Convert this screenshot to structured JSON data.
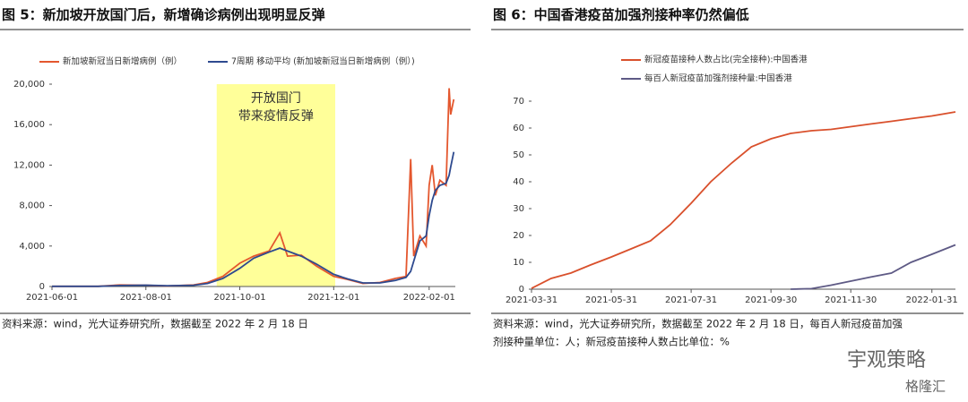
{
  "chart_data": [
    {
      "type": "line",
      "title": "图 5：新加坡开放国门后，新增确诊病例出现明显反弹",
      "x": [
        "2021-06-01",
        "2021-06-15",
        "2021-07-01",
        "2021-07-15",
        "2021-08-01",
        "2021-08-15",
        "2021-09-01",
        "2021-09-10",
        "2021-09-20",
        "2021-10-01",
        "2021-10-10",
        "2021-10-20",
        "2021-10-27",
        "2021-11-01",
        "2021-11-10",
        "2021-11-20",
        "2021-12-01",
        "2021-12-10",
        "2021-12-20",
        "2021-12-31",
        "2022-01-10",
        "2022-01-17",
        "2022-01-20",
        "2022-01-22",
        "2022-01-26",
        "2022-01-30",
        "2022-02-01",
        "2022-02-03",
        "2022-02-05",
        "2022-02-08",
        "2022-02-12",
        "2022-02-14",
        "2022-02-15",
        "2022-02-17"
      ],
      "series": [
        {
          "name": "新加坡新冠当日新增病例（例）",
          "color": "#e4572e",
          "values": [
            20,
            15,
            20,
            150,
            120,
            50,
            150,
            400,
            1000,
            2300,
            3000,
            3500,
            5300,
            3000,
            3100,
            2000,
            1000,
            700,
            300,
            400,
            800,
            1000,
            12600,
            3000,
            5000,
            4000,
            10000,
            12000,
            9000,
            10500,
            10000,
            19600,
            17000,
            18500
          ]
        },
        {
          "name": "7周期 移动平均 (新加坡新冠当日新增病例（例）)",
          "color": "#2e4a8f",
          "values": [
            20,
            18,
            18,
            100,
            130,
            80,
            120,
            300,
            800,
            1800,
            2800,
            3400,
            3800,
            3500,
            3000,
            2200,
            1200,
            750,
            350,
            350,
            600,
            900,
            1500,
            2500,
            4500,
            5000,
            7000,
            8500,
            9500,
            10000,
            10200,
            11000,
            11800,
            13300
          ]
        }
      ],
      "xlim": [
        "2021-06-01",
        "2022-02-18"
      ],
      "xticks": [
        "2021-06-01",
        "2021-08-01",
        "2021-10-01",
        "2021-12-01",
        "2022-02-01"
      ],
      "ylim": [
        0,
        20000
      ],
      "yticks": [
        0,
        {
          "value": 4000,
          "label": "4,000"
        },
        {
          "value": 8000,
          "label": "8,000"
        },
        {
          "value": 12000,
          "label": "12,000"
        },
        {
          "value": 16000,
          "label": "16,000"
        },
        {
          "value": 20000,
          "label": "20,000"
        }
      ],
      "annotation": {
        "x": [
          "2021-09-16",
          "2021-12-02"
        ],
        "text": [
          "开放国门",
          "带来疫情反弹"
        ],
        "color": "#ffff99"
      },
      "legend": "top",
      "source": [
        "资料来源：wind，光大证券研究所，数据截至 2022 年 2 月 18 日"
      ]
    },
    {
      "type": "line",
      "title": "图 6：中国香港疫苗加强剂接种率仍然偏低",
      "x": [
        "2021-03-31",
        "2021-04-15",
        "2021-04-30",
        "2021-05-15",
        "2021-05-31",
        "2021-06-15",
        "2021-06-30",
        "2021-07-15",
        "2021-07-31",
        "2021-08-15",
        "2021-08-31",
        "2021-09-15",
        "2021-09-30",
        "2021-10-15",
        "2021-10-31",
        "2021-11-15",
        "2021-11-30",
        "2021-12-15",
        "2021-12-31",
        "2022-01-15",
        "2022-01-31",
        "2022-02-18"
      ],
      "series": [
        {
          "name": "新冠疫苗接种人数占比(完全接种):中国香港",
          "color": "#d9502c",
          "values": [
            0.3,
            4,
            6,
            9,
            12,
            15,
            18,
            24,
            32,
            40,
            47,
            53,
            56,
            58,
            59,
            59.5,
            60.5,
            61.5,
            62.5,
            63.5,
            64.5,
            66
          ]
        },
        {
          "name": "每百人新冠疫苗加强剂接种量:中国香港",
          "color": "#5e5a85",
          "values": [
            null,
            null,
            null,
            null,
            null,
            null,
            null,
            null,
            null,
            null,
            null,
            null,
            null,
            0,
            0.2,
            1.5,
            3,
            4.5,
            6,
            10,
            13,
            16.5
          ]
        }
      ],
      "xlim": [
        "2021-03-31",
        "2022-02-18"
      ],
      "xticks": [
        "2021-03-31",
        "2021-05-31",
        "2021-07-31",
        "2021-09-30",
        "2021-11-30",
        "2022-01-31"
      ],
      "ylim": [
        0,
        70
      ],
      "yticks": [
        0,
        10,
        20,
        30,
        40,
        50,
        60,
        70
      ],
      "legend": "top-stacked",
      "source": [
        "资料来源：wind，光大证券研究所，数据截至 2022 年 2 月 18 日，每百人新冠疫苗加强",
        "剂接种量单位：人；新冠疫苗接种人数占比单位：%"
      ]
    }
  ],
  "watermark": [
    "宇观策略",
    "格隆汇"
  ]
}
